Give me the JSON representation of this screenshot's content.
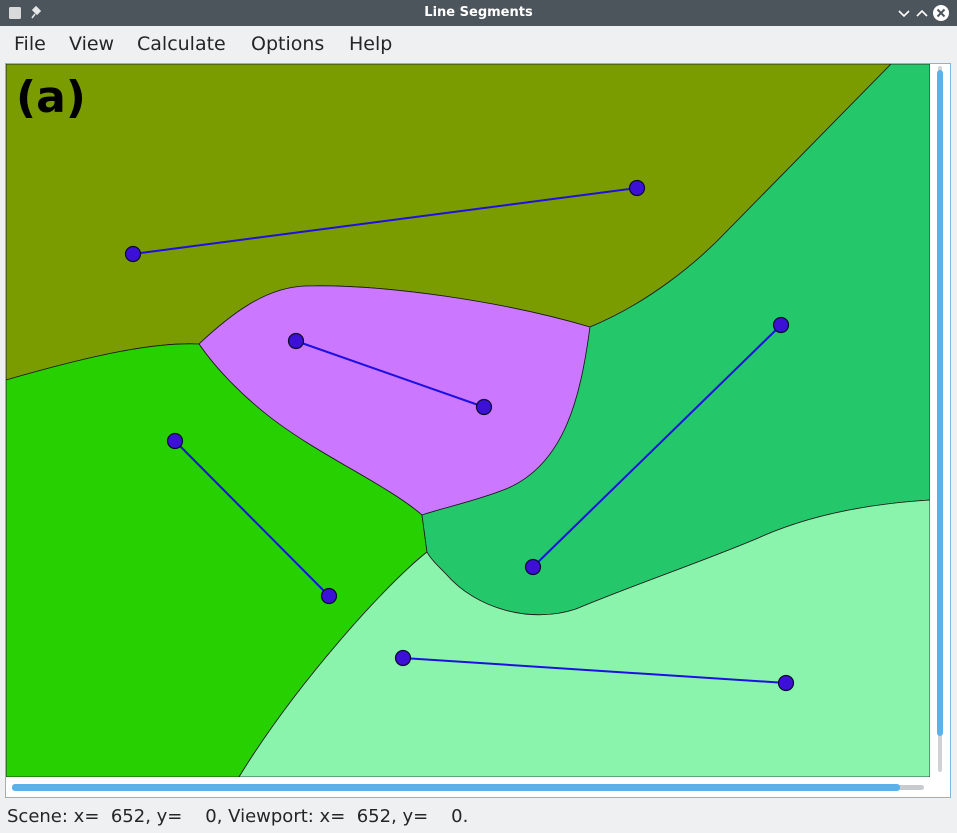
{
  "window": {
    "title": "Line Segments",
    "titlebar_color": "#4d555c"
  },
  "menubar": {
    "items": [
      {
        "label": "File"
      },
      {
        "label": "View"
      },
      {
        "label": "Calculate"
      },
      {
        "label": "Options"
      },
      {
        "label": "Help"
      }
    ]
  },
  "scene": {
    "panel_label": "(a)",
    "region_colors": {
      "olive": "#7a9c00",
      "violet": "#cc77ff",
      "green": "#27d000",
      "teal": "#24c86a",
      "mint": "#8af4ad"
    },
    "segment_color": "#1d10e0",
    "endpoint_fill": "#3d10d8"
  },
  "scrollbars": {
    "accent": "#5bb2ea"
  },
  "status": {
    "text": "Scene: x=  652, y=    0, Viewport: x=  652, y=    0."
  }
}
